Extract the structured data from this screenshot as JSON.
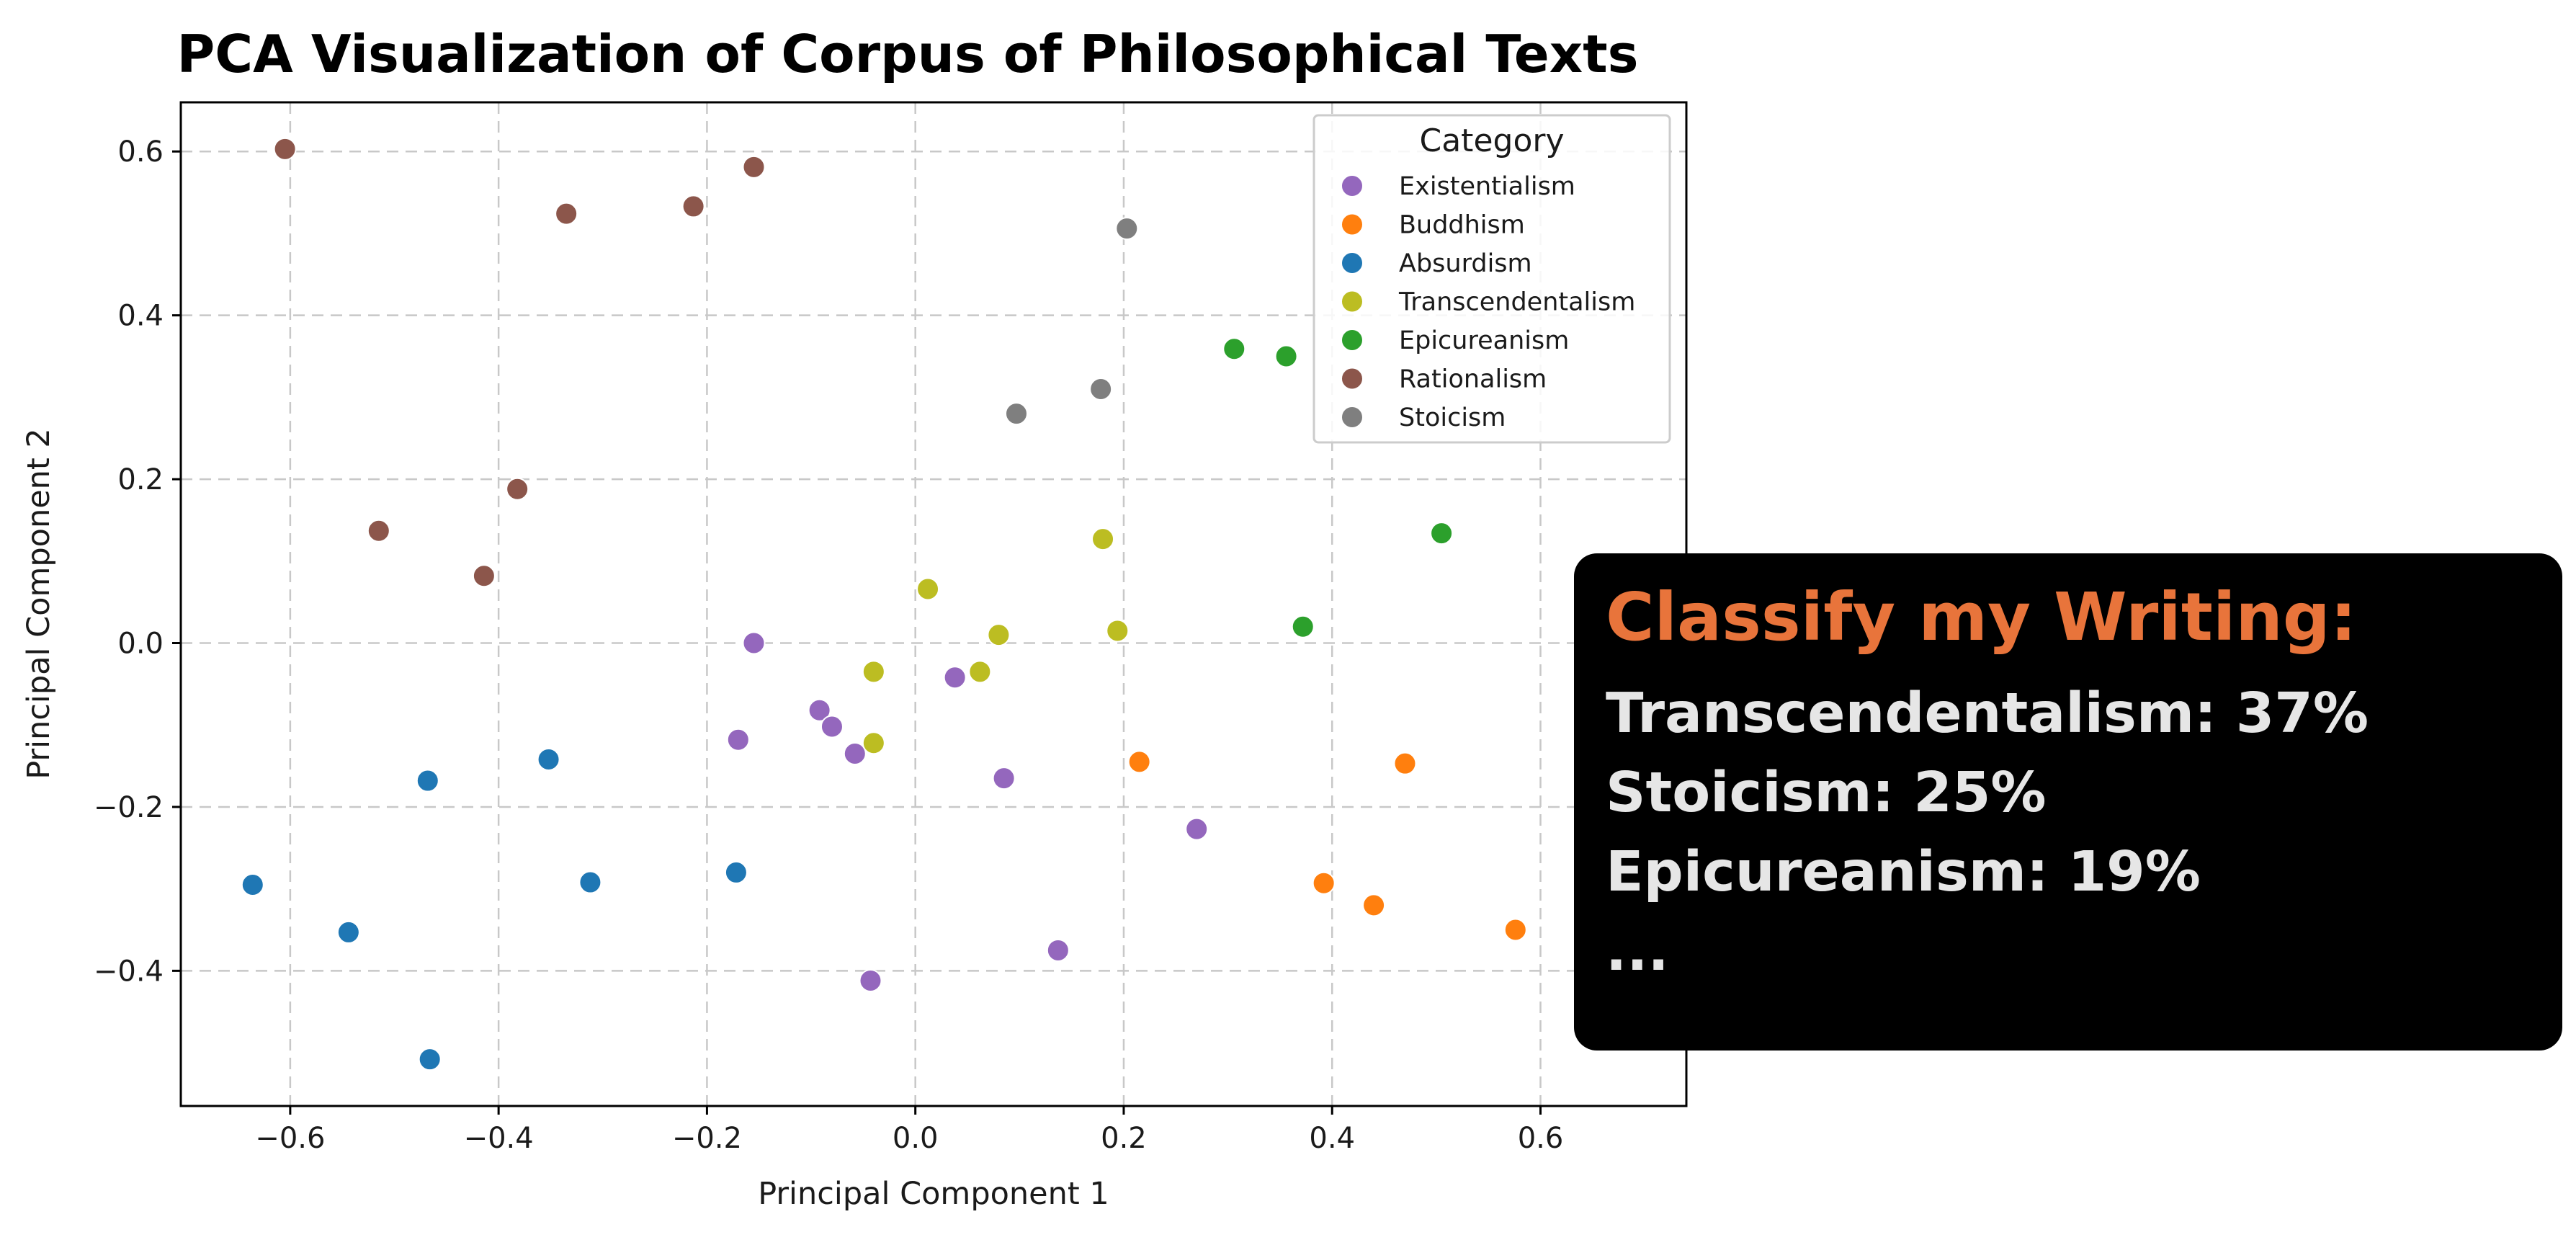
{
  "chart_data": {
    "type": "scatter",
    "title": "PCA Visualization of Corpus of Philosophical Texts",
    "xlabel": "Principal Component 1",
    "ylabel": "Principal Component 2",
    "xlim": [
      -0.705,
      0.74
    ],
    "ylim": [
      -0.565,
      0.66
    ],
    "xticks": [
      -0.6,
      -0.4,
      -0.2,
      0.0,
      0.2,
      0.4,
      0.6
    ],
    "yticks": [
      -0.4,
      -0.2,
      0.0,
      0.2,
      0.4,
      0.6
    ],
    "xtick_labels": [
      "−0.6",
      "−0.4",
      "−0.2",
      "0.0",
      "0.2",
      "0.4",
      "0.6"
    ],
    "ytick_labels": [
      "−0.4",
      "−0.2",
      "0.0",
      "0.2",
      "0.4",
      "0.6"
    ],
    "grid": true,
    "legend": {
      "title": "Category",
      "placement": "top-right"
    },
    "series": [
      {
        "name": "Existentialism",
        "color": "#9467bd",
        "points": [
          [
            -0.155,
            0.0
          ],
          [
            -0.17,
            -0.118
          ],
          [
            -0.092,
            -0.082
          ],
          [
            -0.08,
            -0.102
          ],
          [
            -0.058,
            -0.135
          ],
          [
            0.038,
            -0.042
          ],
          [
            0.085,
            -0.165
          ],
          [
            0.27,
            -0.227
          ],
          [
            0.137,
            -0.375
          ],
          [
            -0.043,
            -0.412
          ]
        ]
      },
      {
        "name": "Buddhism",
        "color": "#ff7f0e",
        "points": [
          [
            0.215,
            -0.145
          ],
          [
            0.47,
            -0.147
          ],
          [
            0.392,
            -0.293
          ],
          [
            0.44,
            -0.32
          ],
          [
            0.576,
            -0.35
          ]
        ]
      },
      {
        "name": "Absurdism",
        "color": "#1f77b4",
        "points": [
          [
            -0.468,
            -0.168
          ],
          [
            -0.352,
            -0.142
          ],
          [
            -0.636,
            -0.295
          ],
          [
            -0.544,
            -0.353
          ],
          [
            -0.312,
            -0.292
          ],
          [
            -0.172,
            -0.28
          ],
          [
            -0.466,
            -0.508
          ]
        ]
      },
      {
        "name": "Transcendentalism",
        "color": "#bcbd22",
        "points": [
          [
            0.012,
            0.066
          ],
          [
            0.18,
            0.127
          ],
          [
            0.08,
            0.01
          ],
          [
            0.194,
            0.015
          ],
          [
            -0.04,
            -0.035
          ],
          [
            0.062,
            -0.035
          ],
          [
            -0.04,
            -0.122
          ]
        ]
      },
      {
        "name": "Epicureanism",
        "color": "#2ca02c",
        "points": [
          [
            0.306,
            0.359
          ],
          [
            0.356,
            0.35
          ],
          [
            0.505,
            0.134
          ],
          [
            0.372,
            0.02
          ]
        ]
      },
      {
        "name": "Rationalism",
        "color": "#8c564b",
        "points": [
          [
            -0.605,
            0.603
          ],
          [
            -0.155,
            0.581
          ],
          [
            -0.335,
            0.524
          ],
          [
            -0.213,
            0.533
          ],
          [
            -0.382,
            0.188
          ],
          [
            -0.515,
            0.137
          ],
          [
            -0.414,
            0.082
          ]
        ]
      },
      {
        "name": "Stoicism",
        "color": "#7f7f7f",
        "points": [
          [
            0.203,
            0.506
          ],
          [
            0.178,
            0.31
          ],
          [
            0.097,
            0.28
          ]
        ]
      }
    ]
  },
  "classifier": {
    "heading": "Classify my Writing:",
    "results": [
      "Transcendentalism: 37%",
      "Stoicism: 25%",
      "Epicureanism: 19%",
      "..."
    ]
  }
}
